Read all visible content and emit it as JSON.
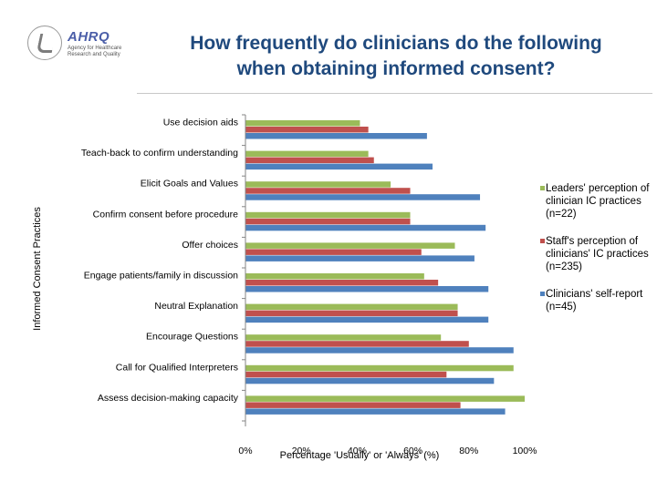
{
  "logo": {
    "agency_name": "AHRQ",
    "agency_subtitle": "Agency for Healthcare Research and Quality"
  },
  "title_line1": "How frequently do clinicians do the following",
  "title_line2": "when obtaining informed consent?",
  "colors": {
    "leaders": "#9bbb59",
    "staff": "#c0504d",
    "clinicians": "#4f81bd",
    "title": "#1f497d"
  },
  "chart_data": {
    "type": "bar",
    "orientation": "horizontal",
    "title": "How frequently do clinicians do the following when obtaining informed consent?",
    "xlabel": "Percentage 'Usually' or 'Always' (%)",
    "ylabel": "Informed Consent Practices",
    "xlim": [
      0,
      100
    ],
    "xticks": [
      0,
      20,
      40,
      60,
      80,
      100
    ],
    "xtick_labels": [
      "0%",
      "20%",
      "40%",
      "60%",
      "80%",
      "100%"
    ],
    "grid": false,
    "legend_position": "right",
    "categories": [
      "Use decision aids",
      "Teach-back to confirm understanding",
      "Elicit Goals and Values",
      "Confirm consent before procedure",
      "Offer choices",
      "Engage patients/family in discussion",
      "Neutral Explanation",
      "Encourage Questions",
      "Call for Qualified Interpreters",
      "Assess decision-making capacity"
    ],
    "series": [
      {
        "name": "Leaders' perception of clinician IC practices (n=22)",
        "color": "#9bbb59",
        "values": [
          41,
          44,
          52,
          59,
          75,
          64,
          76,
          70,
          96,
          100
        ]
      },
      {
        "name": "Staff's perception of clinicians' IC practices (n=235)",
        "color": "#c0504d",
        "values": [
          44,
          46,
          59,
          59,
          63,
          69,
          76,
          80,
          72,
          77
        ]
      },
      {
        "name": "Clinicians' self-report (n=45)",
        "color": "#4f81bd",
        "values": [
          65,
          67,
          84,
          86,
          82,
          87,
          87,
          96,
          89,
          93
        ]
      }
    ]
  }
}
